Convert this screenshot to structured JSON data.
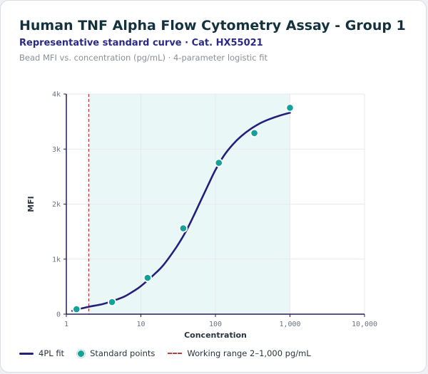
{
  "header": {
    "title": "Human TNF Alpha Flow Cytometry Assay - Group 1",
    "subtitle": "Representative standard curve · Cat. HX55021",
    "note": "Bead MFI vs. concentration (pg/mL) · 4-parameter logistic fit"
  },
  "legend": {
    "fit": "4PL fit",
    "points": "Standard points",
    "range": "Working range 2–1,000 pg/mL"
  },
  "colors": {
    "fit_line": "#241f7c",
    "points": "#13a19b",
    "range_line": "#c0393b",
    "range_fill": "#eaf7f7"
  },
  "chart_data": {
    "type": "scatter",
    "xlabel": "Concentration",
    "ylabel": "MFI",
    "x_scale": "log",
    "xlim": [
      1,
      10000
    ],
    "ylim": [
      0,
      4000
    ],
    "x_ticks": [
      1,
      10,
      100,
      1000,
      10000
    ],
    "x_tick_labels": [
      "1",
      "10",
      "100",
      "1,000",
      "10,000"
    ],
    "y_ticks": [
      0,
      1000,
      2000,
      3000,
      4000
    ],
    "y_tick_labels": [
      "0",
      "1k",
      "2k",
      "3k",
      "4k"
    ],
    "working_range": [
      2,
      1000
    ],
    "series": [
      {
        "name": "Standard points",
        "x": [
          1.37,
          4.1,
          12.3,
          37,
          111,
          333,
          1000
        ],
        "y": [
          90,
          220,
          660,
          1560,
          2750,
          3290,
          3750
        ]
      }
    ],
    "fit": {
      "name": "4PL fit",
      "x": [
        1.2,
        1.5,
        2,
        3,
        4,
        6,
        8,
        10,
        15,
        20,
        30,
        40,
        50,
        60,
        80,
        100,
        130,
        170,
        220,
        300,
        400,
        500,
        700,
        1000
      ],
      "y": [
        60,
        95,
        135,
        180,
        230,
        320,
        420,
        510,
        720,
        890,
        1220,
        1500,
        1760,
        1990,
        2350,
        2620,
        2880,
        3080,
        3230,
        3370,
        3470,
        3530,
        3600,
        3660
      ]
    }
  }
}
